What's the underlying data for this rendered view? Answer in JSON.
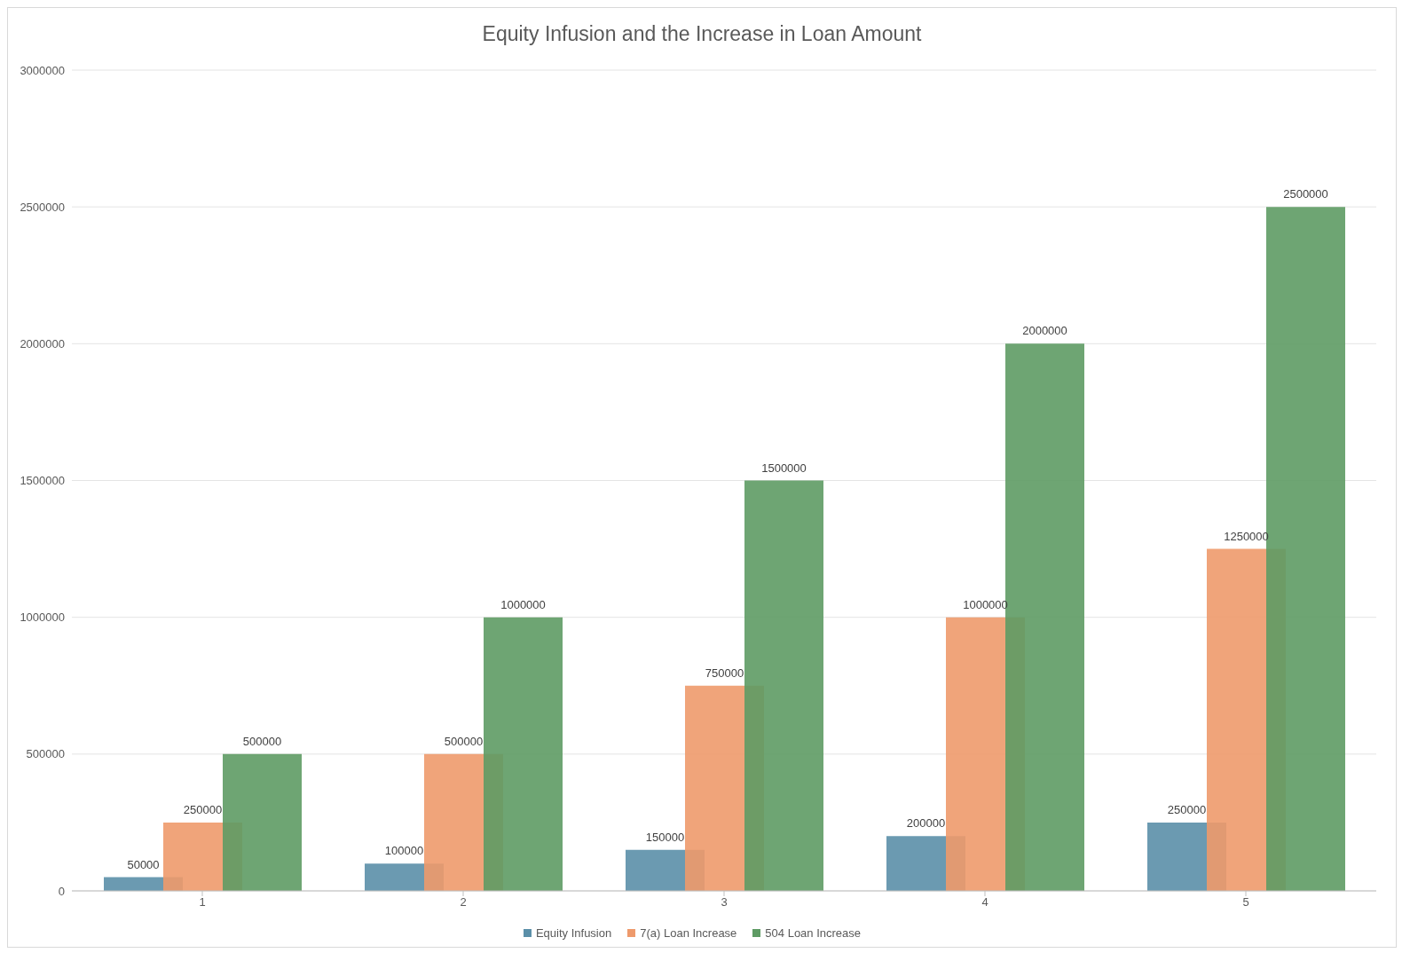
{
  "chart_data": {
    "type": "bar",
    "title": "Equity Infusion and the Increase in Loan Amount",
    "categories": [
      "1",
      "2",
      "3",
      "4",
      "5"
    ],
    "series": [
      {
        "name": "Equity Infusion",
        "color": "#5b8fa8",
        "values": [
          50000,
          100000,
          150000,
          200000,
          250000
        ]
      },
      {
        "name": "7(a) Loan Increase",
        "color": "#ee9a6c",
        "values": [
          250000,
          500000,
          750000,
          1000000,
          1250000
        ]
      },
      {
        "name": "504 Loan Increase",
        "color": "#5e9b64",
        "values": [
          500000,
          1000000,
          1500000,
          2000000,
          2500000
        ]
      }
    ],
    "ylim": [
      0,
      3000000
    ],
    "yticks": [
      0,
      500000,
      1000000,
      1500000,
      2000000,
      2500000,
      3000000
    ],
    "grid": "y",
    "legend": "bottom",
    "data_labels": true
  }
}
